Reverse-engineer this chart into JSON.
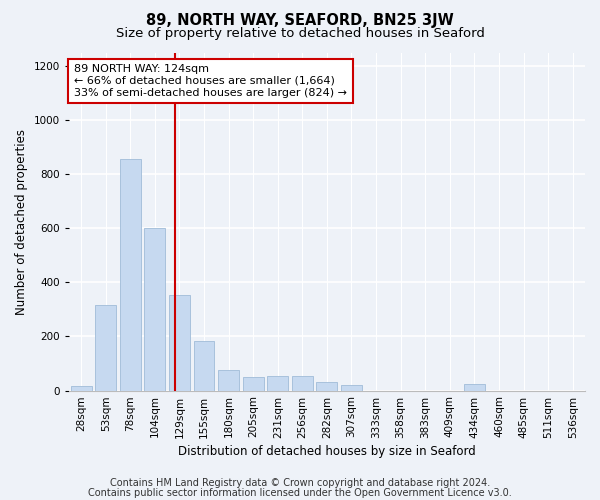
{
  "title": "89, NORTH WAY, SEAFORD, BN25 3JW",
  "subtitle": "Size of property relative to detached houses in Seaford",
  "xlabel": "Distribution of detached houses by size in Seaford",
  "ylabel": "Number of detached properties",
  "categories": [
    "28sqm",
    "53sqm",
    "78sqm",
    "104sqm",
    "129sqm",
    "155sqm",
    "180sqm",
    "205sqm",
    "231sqm",
    "256sqm",
    "282sqm",
    "307sqm",
    "333sqm",
    "358sqm",
    "383sqm",
    "409sqm",
    "434sqm",
    "460sqm",
    "485sqm",
    "511sqm",
    "536sqm"
  ],
  "values": [
    18,
    315,
    855,
    600,
    355,
    185,
    75,
    50,
    55,
    55,
    30,
    20,
    0,
    0,
    0,
    0,
    25,
    0,
    0,
    0,
    0
  ],
  "bar_color": "#c6d9f0",
  "bar_edgecolor": "#a0bcd8",
  "annotation_line1": "89 NORTH WAY: 124sqm",
  "annotation_line2": "← 66% of detached houses are smaller (1,664)",
  "annotation_line3": "33% of semi-detached houses are larger (824) →",
  "vline_color": "#cc0000",
  "background_color": "#eef2f8",
  "grid_color": "#ffffff",
  "footer1": "Contains HM Land Registry data © Crown copyright and database right 2024.",
  "footer2": "Contains public sector information licensed under the Open Government Licence v3.0.",
  "ylim": [
    0,
    1250
  ],
  "yticks": [
    0,
    200,
    400,
    600,
    800,
    1000,
    1200
  ],
  "property_line_x": 3.82,
  "title_fontsize": 10.5,
  "subtitle_fontsize": 9.5,
  "xlabel_fontsize": 8.5,
  "ylabel_fontsize": 8.5,
  "tick_fontsize": 7.5,
  "annotation_fontsize": 8,
  "footer_fontsize": 7
}
